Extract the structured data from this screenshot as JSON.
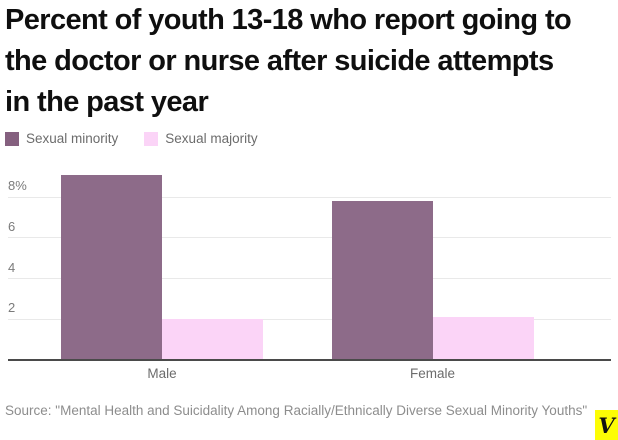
{
  "title": "Percent of youth 13-18 who report going to the doctor or nurse after suicide attempts in the past year",
  "legend": [
    {
      "label": "Sexual minority",
      "color": "#85607f"
    },
    {
      "label": "Sexual majority",
      "color": "#fbd4f7"
    }
  ],
  "chart_data": {
    "type": "bar",
    "categories": [
      "Male",
      "Female"
    ],
    "series": [
      {
        "name": "Sexual minority",
        "color": "#8d6b89",
        "values": [
          9.1,
          7.8
        ]
      },
      {
        "name": "Sexual majority",
        "color": "#fbd4f7",
        "values": [
          2.0,
          2.1
        ]
      }
    ],
    "title": "Percent of youth 13-18 who report going to the doctor or nurse after suicide attempts in the past year",
    "xlabel": "",
    "ylabel": "",
    "ylim": [
      0,
      9.6
    ],
    "yticks": [
      2,
      4,
      6,
      8
    ],
    "ytick_labels": [
      "2",
      "4",
      "6",
      "8%"
    ],
    "grid": true,
    "legend_position": "top-left"
  },
  "source": {
    "text": "Source: \"Mental Health and Suicidality Among Racially/Ethnically Diverse Sexual Minority Youths\""
  },
  "branding": {
    "logo_letter": "V",
    "logo_bg": "#fdfd05"
  }
}
